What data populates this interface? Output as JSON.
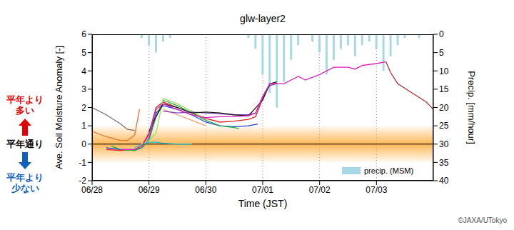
{
  "chart_data": {
    "type": "line",
    "title": "glw-layer2",
    "x_label": "Time (JST)",
    "y_label": "Ave. Soil Moisture Anomaly [-]",
    "y2_label": "Precip. [mm/hour]",
    "xlim": [
      0,
      144
    ],
    "xticks": [
      {
        "value": 0,
        "label": "06/28"
      },
      {
        "value": 24,
        "label": "06/29"
      },
      {
        "value": 48,
        "label": "06/30"
      },
      {
        "value": 72,
        "label": "07/01"
      },
      {
        "value": 96,
        "label": "07/02"
      },
      {
        "value": 120,
        "label": "07/03"
      }
    ],
    "ylim": [
      -2,
      6
    ],
    "yticks": [
      -2,
      -1,
      0,
      1,
      2,
      3,
      4,
      5,
      6
    ],
    "y2lim": [
      40,
      0
    ],
    "y2ticks": [
      0,
      5,
      10,
      15,
      20,
      25,
      30,
      35,
      40
    ],
    "grid": true,
    "legend": "lower right",
    "normal_range": [
      -1,
      1
    ],
    "reference_line": 0,
    "annotations": [
      {
        "text": "平年より多い",
        "color": "#e00000"
      },
      {
        "text": "平年通り",
        "color": "#000000"
      },
      {
        "text": "平年より少ない",
        "color": "#1060c0"
      }
    ],
    "credit": "©JAXA/UTokyo",
    "series": [
      {
        "name": "precip. (MSM)",
        "type": "bar",
        "axis": "y2",
        "color": "#a8d8e6",
        "x": [
          21,
          24,
          27,
          30,
          33,
          66,
          69,
          72,
          75,
          78,
          81,
          84,
          87,
          93,
          96,
          99,
          102,
          105,
          108,
          111,
          114,
          117,
          120,
          123,
          126,
          129,
          132,
          138
        ],
        "values": [
          1,
          3,
          5,
          2,
          1,
          1,
          4,
          11,
          16,
          20,
          13,
          7,
          3,
          2,
          5,
          11,
          7,
          4,
          3,
          6,
          3,
          2,
          4,
          10,
          6,
          3,
          1,
          1
        ]
      },
      {
        "type": "line",
        "color": "#707070",
        "x": [
          0,
          6,
          12,
          15,
          18
        ],
        "values": [
          2.0,
          1.6,
          1.1,
          0.8,
          0.75
        ]
      },
      {
        "type": "line",
        "color": "#f07030",
        "x": [
          0,
          6,
          12,
          15,
          18,
          20
        ],
        "values": [
          0.7,
          0.4,
          0.2,
          0.2,
          0.5,
          1.9
        ]
      },
      {
        "type": "line",
        "color": "#e02020",
        "x": [
          6,
          12,
          18,
          21,
          24,
          27,
          30,
          36,
          42,
          48,
          54,
          60,
          66,
          69,
          72,
          75,
          78
        ],
        "values": [
          -0.3,
          -0.35,
          -0.3,
          -0.1,
          0.6,
          2.0,
          2.3,
          2.0,
          1.7,
          1.4,
          1.2,
          1.25,
          1.35,
          1.5,
          2.5,
          3.3,
          3.3
        ]
      },
      {
        "type": "line",
        "color": "#2040e0",
        "x": [
          6,
          12,
          18,
          21,
          24,
          27,
          30,
          36,
          42,
          48,
          54,
          60,
          66,
          70
        ],
        "values": [
          -0.2,
          -0.3,
          -0.3,
          -0.2,
          0.3,
          1.7,
          2.1,
          1.9,
          1.6,
          1.2,
          1.0,
          0.95,
          1.0,
          1.1
        ]
      },
      {
        "type": "line",
        "color": "#20b040",
        "x": [
          8,
          12,
          18,
          21,
          24,
          27,
          30,
          36,
          42,
          48,
          54,
          60,
          62
        ],
        "values": [
          -0.1,
          -0.3,
          -0.35,
          -0.2,
          0.2,
          1.5,
          2.4,
          2.1,
          1.7,
          1.3,
          1.0,
          0.9,
          0.85
        ]
      },
      {
        "type": "line",
        "color": "#20c0d0",
        "x": [
          18,
          21,
          24,
          27,
          30,
          36,
          42
        ],
        "values": [
          -0.2,
          0.0,
          0.1,
          0.1,
          0.05,
          0.0,
          0.0
        ]
      },
      {
        "type": "line",
        "color": "#a0e060",
        "x": [
          21,
          24,
          27,
          30,
          36,
          42,
          46
        ],
        "values": [
          0.0,
          0.2,
          0.6,
          2.5,
          2.2,
          1.8,
          1.5
        ]
      },
      {
        "type": "line",
        "color": "#f0a070",
        "x": [
          30,
          36,
          42,
          48
        ],
        "values": [
          1.9,
          1.6,
          1.3,
          1.0
        ]
      },
      {
        "type": "line",
        "color": "#8040c0",
        "x": [
          30,
          36,
          42,
          48,
          54,
          60,
          66,
          69,
          72,
          75,
          78
        ],
        "values": [
          1.8,
          1.7,
          1.75,
          1.7,
          1.65,
          1.6,
          1.6,
          1.7,
          2.6,
          3.2,
          3.3
        ]
      },
      {
        "type": "line",
        "color": "#202020",
        "x": [
          24,
          27,
          30,
          36,
          42,
          48,
          54,
          60,
          66,
          72,
          75,
          78
        ],
        "values": [
          0.7,
          1.5,
          2.2,
          2.0,
          1.7,
          1.75,
          1.7,
          1.6,
          1.55,
          2.4,
          3.3,
          3.4
        ]
      },
      {
        "type": "line",
        "color": "#e020c0",
        "x": [
          12,
          18,
          21,
          24,
          27,
          30,
          36,
          42,
          48,
          54,
          60,
          66,
          69,
          72,
          75,
          81,
          87,
          90,
          96,
          102,
          108,
          111,
          114,
          120,
          124
        ],
        "values": [
          -0.3,
          -0.3,
          -0.1,
          0.5,
          1.9,
          2.2,
          1.9,
          1.6,
          1.45,
          1.5,
          1.5,
          1.55,
          1.7,
          2.6,
          3.3,
          3.3,
          3.7,
          3.5,
          3.8,
          4.2,
          4.2,
          4.1,
          4.3,
          4.4,
          4.5
        ]
      },
      {
        "type": "line",
        "color": "#b03030",
        "x": [
          124,
          126,
          129,
          135,
          141,
          144
        ],
        "values": [
          4.5,
          3.9,
          3.3,
          2.8,
          2.3,
          1.9
        ]
      }
    ]
  }
}
